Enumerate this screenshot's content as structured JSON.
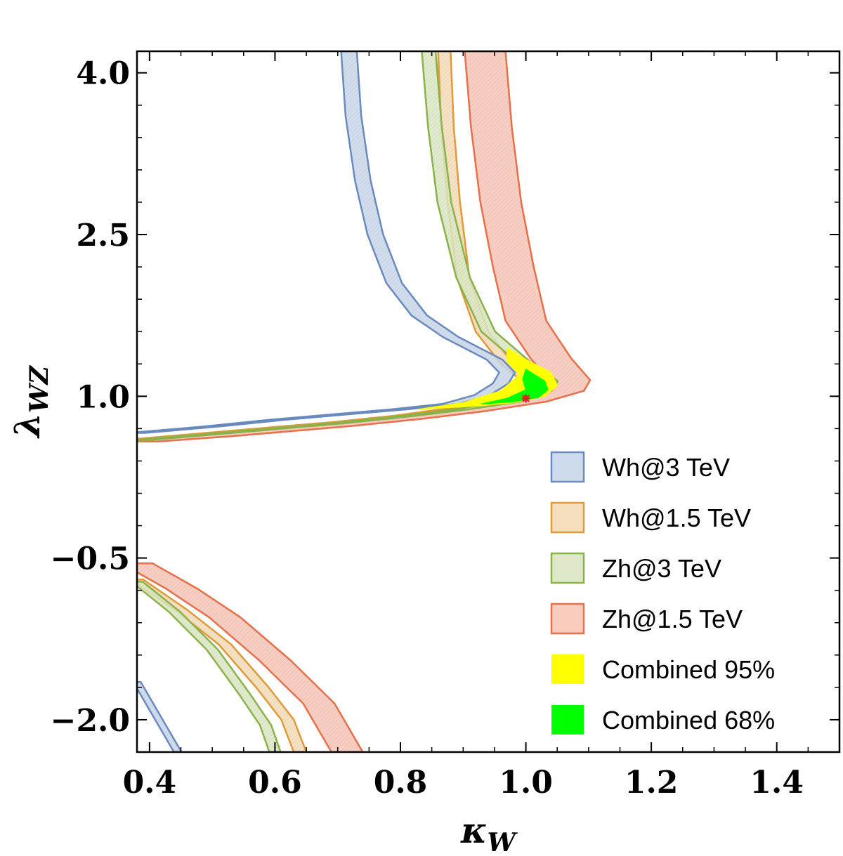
{
  "chart_data": {
    "type": "contour-region",
    "title": "",
    "xlabel": "κ",
    "xlabel_sub": "W",
    "ylabel": "λ",
    "ylabel_sub": "WZ",
    "xlim": [
      0.38,
      1.5
    ],
    "ylim": [
      -2.3,
      4.2
    ],
    "xticks": [
      0.4,
      0.6,
      0.8,
      1.0,
      1.2,
      1.4
    ],
    "xtick_labels": [
      "0.4",
      "0.6",
      "0.8",
      "1.0",
      "1.2",
      "1.4"
    ],
    "yticks": [
      -2.0,
      -0.5,
      1.0,
      2.5,
      4.0
    ],
    "ytick_labels": [
      "−2.0",
      "−0.5",
      "1.0",
      "2.5",
      "4.0"
    ],
    "best_fit_point": {
      "x": 1.0,
      "y": 0.98,
      "color": "#d62728"
    },
    "series": [
      {
        "name": "Wh@3 TeV",
        "stroke": "#6a8bc0",
        "fill": "#c9d7ea",
        "upper_band": [
          [
            0.38,
            0.66
          ],
          [
            0.5,
            0.72
          ],
          [
            0.6,
            0.78
          ],
          [
            0.7,
            0.83
          ],
          [
            0.8,
            0.88
          ],
          [
            0.88,
            0.93
          ],
          [
            0.93,
            1.01
          ],
          [
            0.96,
            1.12
          ],
          [
            0.97,
            1.22
          ],
          [
            0.95,
            1.34
          ],
          [
            0.88,
            1.55
          ],
          [
            0.83,
            1.75
          ],
          [
            0.79,
            2.05
          ],
          [
            0.76,
            2.5
          ],
          [
            0.74,
            3.0
          ],
          [
            0.725,
            3.6
          ],
          [
            0.718,
            4.2
          ]
        ],
        "band_width": 0.025,
        "lower_branch": [
          [
            0.38,
            -1.65
          ],
          [
            0.41,
            -1.95
          ],
          [
            0.43,
            -2.15
          ],
          [
            0.445,
            -2.3
          ]
        ],
        "lower_width": 0.012
      },
      {
        "name": "Wh@1.5 TeV",
        "stroke": "#e09b3a",
        "fill": "#f4dcb7",
        "upper_band": [
          [
            0.38,
            0.6
          ],
          [
            0.5,
            0.66
          ],
          [
            0.6,
            0.71
          ],
          [
            0.7,
            0.76
          ],
          [
            0.8,
            0.82
          ],
          [
            0.9,
            0.9
          ],
          [
            0.97,
            0.98
          ],
          [
            1.0,
            1.06
          ],
          [
            1.0,
            1.16
          ],
          [
            0.97,
            1.3
          ],
          [
            0.93,
            1.6
          ],
          [
            0.9,
            2.1
          ],
          [
            0.885,
            2.8
          ],
          [
            0.875,
            3.5
          ],
          [
            0.87,
            4.2
          ]
        ],
        "band_width": 0.02,
        "lower_branch": [
          [
            0.38,
            -0.7
          ],
          [
            0.45,
            -0.98
          ],
          [
            0.52,
            -1.3
          ],
          [
            0.58,
            -1.7
          ],
          [
            0.62,
            -2.0
          ],
          [
            0.64,
            -2.3
          ]
        ],
        "lower_width": 0.02
      },
      {
        "name": "Zh@3 TeV",
        "stroke": "#8cb34a",
        "fill": "#dbe7c4",
        "upper_band": [
          [
            0.38,
            0.59
          ],
          [
            0.5,
            0.65
          ],
          [
            0.6,
            0.7
          ],
          [
            0.7,
            0.75
          ],
          [
            0.8,
            0.81
          ],
          [
            0.9,
            0.88
          ],
          [
            0.98,
            0.95
          ],
          [
            1.03,
            1.05
          ],
          [
            1.04,
            1.14
          ],
          [
            1.0,
            1.3
          ],
          [
            0.94,
            1.6
          ],
          [
            0.9,
            2.1
          ],
          [
            0.87,
            2.8
          ],
          [
            0.855,
            3.5
          ],
          [
            0.845,
            4.2
          ]
        ],
        "band_width": 0.022,
        "lower_branch": [
          [
            0.38,
            -0.72
          ],
          [
            0.44,
            -1.0
          ],
          [
            0.5,
            -1.35
          ],
          [
            0.55,
            -1.75
          ],
          [
            0.585,
            -2.05
          ],
          [
            0.6,
            -2.3
          ]
        ],
        "lower_width": 0.018
      },
      {
        "name": "Zh@1.5 TeV",
        "stroke": "#e8704a",
        "fill": "#f6c6b6",
        "upper_band": [
          [
            0.38,
            0.58
          ],
          [
            0.5,
            0.63
          ],
          [
            0.6,
            0.68
          ],
          [
            0.7,
            0.73
          ],
          [
            0.8,
            0.79
          ],
          [
            0.9,
            0.86
          ],
          [
            1.0,
            0.95
          ],
          [
            1.06,
            1.05
          ],
          [
            1.07,
            1.15
          ],
          [
            1.04,
            1.35
          ],
          [
            1.0,
            1.7
          ],
          [
            0.98,
            2.2
          ],
          [
            0.96,
            2.8
          ],
          [
            0.945,
            3.5
          ],
          [
            0.935,
            4.2
          ]
        ],
        "band_width": 0.065,
        "lower_branch": [
          [
            0.38,
            -0.55
          ],
          [
            0.45,
            -0.78
          ],
          [
            0.52,
            -1.05
          ],
          [
            0.6,
            -1.45
          ],
          [
            0.67,
            -1.85
          ],
          [
            0.715,
            -2.3
          ]
        ],
        "lower_width": 0.05
      },
      {
        "name": "Combined 95%",
        "stroke": "#ffff00",
        "fill": "#ffff00",
        "region": [
          [
            0.83,
            0.88
          ],
          [
            0.92,
            0.91
          ],
          [
            0.98,
            0.94
          ],
          [
            1.03,
            1.0
          ],
          [
            1.05,
            1.1
          ],
          [
            1.04,
            1.22
          ],
          [
            1.0,
            1.34
          ],
          [
            0.97,
            1.45
          ],
          [
            0.97,
            1.32
          ],
          [
            0.99,
            1.2
          ],
          [
            0.96,
            1.05
          ],
          [
            0.9,
            0.94
          ]
        ]
      },
      {
        "name": "Combined 68%",
        "stroke": "#00ff00",
        "fill": "#00ff00",
        "region": [
          [
            0.93,
            0.93
          ],
          [
            0.98,
            0.95
          ],
          [
            1.02,
            0.99
          ],
          [
            1.035,
            1.06
          ],
          [
            1.03,
            1.14
          ],
          [
            1.0,
            1.25
          ],
          [
            0.995,
            1.16
          ],
          [
            1.0,
            1.06
          ],
          [
            0.97,
            0.98
          ]
        ]
      }
    ],
    "legend": {
      "placement": "bottom-right",
      "entries": [
        "Wh@3 TeV",
        "Wh@1.5 TeV",
        "Zh@3 TeV",
        "Zh@1.5 TeV",
        "Combined 95%",
        "Combined 68%"
      ]
    },
    "grid": false
  }
}
